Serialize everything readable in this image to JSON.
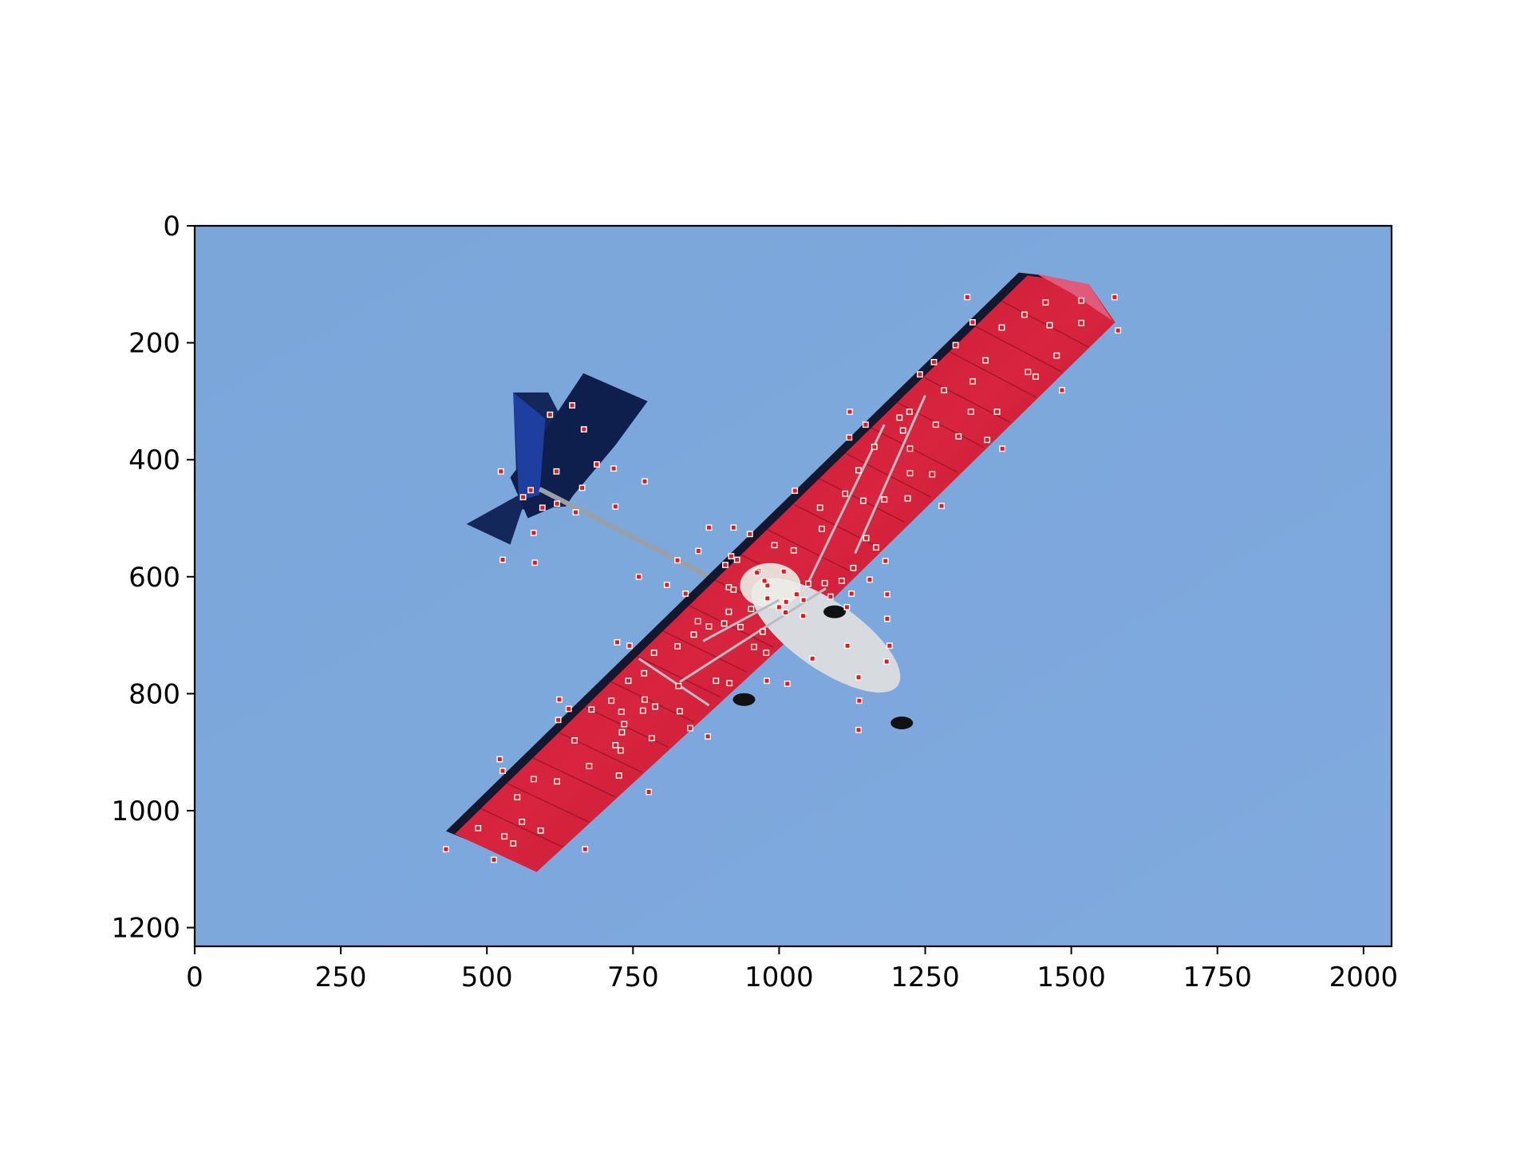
{
  "chart_data": {
    "type": "scatter",
    "title": "",
    "xlabel": "",
    "ylabel": "",
    "xlim": [
      0,
      2048
    ],
    "ylim": [
      1232,
      0
    ],
    "y_inverted": true,
    "grid": false,
    "background_image": "photo of a red-winged ultralight aircraft in flight against a blue sky, viewed from below",
    "x_ticks": [
      0,
      250,
      500,
      750,
      1000,
      1250,
      1500,
      1750,
      2000
    ],
    "x_tick_labels": [
      "0",
      "250",
      "500",
      "750",
      "1000",
      "1250",
      "1500",
      "1750",
      "2000"
    ],
    "y_ticks": [
      0,
      200,
      400,
      600,
      800,
      1000,
      1200
    ],
    "y_tick_labels": [
      "0",
      "200",
      "400",
      "600",
      "800",
      "1000",
      "1200"
    ],
    "marker_color": "#e31a1c",
    "marker_edge_color": "#ffffff",
    "points": [
      [
        1322,
        122
      ],
      [
        1574,
        122
      ],
      [
        1517,
        128
      ],
      [
        1456,
        131
      ],
      [
        1580,
        179
      ],
      [
        1331,
        165
      ],
      [
        1420,
        152
      ],
      [
        1463,
        170
      ],
      [
        1381,
        174
      ],
      [
        1517,
        166
      ],
      [
        1302,
        204
      ],
      [
        1475,
        222
      ],
      [
        1353,
        230
      ],
      [
        1265,
        233
      ],
      [
        1241,
        254
      ],
      [
        1331,
        266
      ],
      [
        1426,
        250
      ],
      [
        1439,
        258
      ],
      [
        1484,
        281
      ],
      [
        1282,
        281
      ],
      [
        1121,
        318
      ],
      [
        1223,
        318
      ],
      [
        1268,
        340
      ],
      [
        1212,
        350
      ],
      [
        1307,
        360
      ],
      [
        1328,
        318
      ],
      [
        1373,
        318
      ],
      [
        1206,
        328
      ],
      [
        1148,
        340
      ],
      [
        1120,
        362
      ],
      [
        1356,
        366
      ],
      [
        1382,
        381
      ],
      [
        1224,
        381
      ],
      [
        1163,
        378
      ],
      [
        1136,
        418
      ],
      [
        1224,
        423
      ],
      [
        1262,
        425
      ],
      [
        1113,
        458
      ],
      [
        1027,
        453
      ],
      [
        1070,
        482
      ],
      [
        1144,
        470
      ],
      [
        1180,
        468
      ],
      [
        1220,
        466
      ],
      [
        1278,
        479
      ],
      [
        1073,
        518
      ],
      [
        950,
        527
      ],
      [
        880,
        516
      ],
      [
        922,
        516
      ],
      [
        862,
        556
      ],
      [
        1025,
        555
      ],
      [
        992,
        546
      ],
      [
        908,
        580
      ],
      [
        928,
        571
      ],
      [
        918,
        565
      ],
      [
        1149,
        534
      ],
      [
        1166,
        550
      ],
      [
        1182,
        573
      ],
      [
        1127,
        585
      ],
      [
        1155,
        605
      ],
      [
        1185,
        630
      ],
      [
        965,
        590
      ],
      [
        1008,
        591
      ],
      [
        1050,
        612
      ],
      [
        1078,
        611
      ],
      [
        980,
        615
      ],
      [
        962,
        593
      ],
      [
        1030,
        630
      ],
      [
        1042,
        640
      ],
      [
        1088,
        634
      ],
      [
        1107,
        607
      ],
      [
        1124,
        629
      ],
      [
        1116,
        652
      ],
      [
        808,
        614
      ],
      [
        840,
        629
      ],
      [
        914,
        618
      ],
      [
        980,
        637
      ],
      [
        1012,
        643
      ],
      [
        1000,
        652
      ],
      [
        1011,
        661
      ],
      [
        1041,
        667
      ],
      [
        922,
        622
      ],
      [
        914,
        660
      ],
      [
        952,
        655
      ],
      [
        861,
        676
      ],
      [
        906,
        680
      ],
      [
        880,
        685
      ],
      [
        854,
        699
      ],
      [
        972,
        694
      ],
      [
        1117,
        718
      ],
      [
        1189,
        718
      ],
      [
        1184,
        745
      ],
      [
        1185,
        672
      ],
      [
        1057,
        740
      ],
      [
        1014,
        783
      ],
      [
        979,
        778
      ],
      [
        892,
        778
      ],
      [
        915,
        782
      ],
      [
        957,
        720
      ],
      [
        978,
        730
      ],
      [
        934,
        686
      ],
      [
        723,
        712
      ],
      [
        744,
        718
      ],
      [
        769,
        765
      ],
      [
        786,
        730
      ],
      [
        826,
        719
      ],
      [
        828,
        787
      ],
      [
        742,
        778
      ],
      [
        770,
        810
      ],
      [
        788,
        822
      ],
      [
        782,
        876
      ],
      [
        830,
        830
      ],
      [
        848,
        859
      ],
      [
        878,
        873
      ],
      [
        730,
        831
      ],
      [
        767,
        829
      ],
      [
        679,
        827
      ],
      [
        713,
        812
      ],
      [
        624,
        810
      ],
      [
        640,
        826
      ],
      [
        622,
        845
      ],
      [
        735,
        852
      ],
      [
        731,
        866
      ],
      [
        650,
        880
      ],
      [
        720,
        888
      ],
      [
        729,
        897
      ],
      [
        675,
        924
      ],
      [
        726,
        940
      ],
      [
        522,
        912
      ],
      [
        527,
        932
      ],
      [
        552,
        977
      ],
      [
        580,
        946
      ],
      [
        620,
        950
      ],
      [
        777,
        968
      ],
      [
        560,
        1019
      ],
      [
        530,
        1044
      ],
      [
        545,
        1056
      ],
      [
        485,
        1030
      ],
      [
        592,
        1034
      ],
      [
        430,
        1066
      ],
      [
        512,
        1084
      ],
      [
        668,
        1066
      ],
      [
        608,
        323
      ],
      [
        646,
        307
      ],
      [
        666,
        348
      ],
      [
        688,
        408
      ],
      [
        717,
        415
      ],
      [
        770,
        437
      ],
      [
        619,
        420
      ],
      [
        663,
        448
      ],
      [
        652,
        490
      ],
      [
        620,
        475
      ],
      [
        595,
        482
      ],
      [
        575,
        452
      ],
      [
        562,
        464
      ],
      [
        524,
        420
      ],
      [
        720,
        480
      ],
      [
        580,
        525
      ],
      [
        527,
        571
      ],
      [
        582,
        576
      ],
      [
        1136,
        862
      ],
      [
        1137,
        812
      ],
      [
        1136,
        772
      ],
      [
        826,
        572
      ],
      [
        975,
        607
      ],
      [
        760,
        600
      ]
    ]
  }
}
